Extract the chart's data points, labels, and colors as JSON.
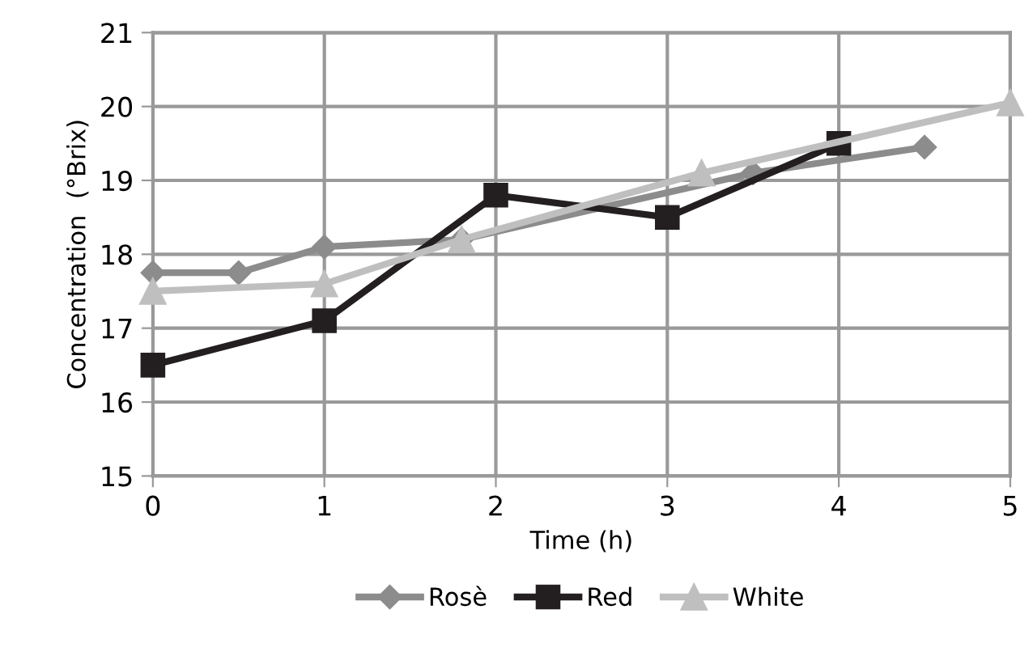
{
  "chart_data": {
    "type": "line",
    "xlabel": "Time (h)",
    "ylabel": "Concentration  (°Brix)",
    "xlim": [
      0,
      5
    ],
    "xticks": [
      0,
      1,
      2,
      3,
      4,
      5
    ],
    "ylim": [
      15,
      21
    ],
    "yticks": [
      15,
      16,
      17,
      18,
      19,
      20,
      21
    ],
    "grid": true,
    "legend": "bottom",
    "line_style": "solid",
    "series": [
      {
        "name": "Rosè",
        "color": "#8c8c8c",
        "marker": "diamond",
        "x": [
          0,
          0.5,
          1,
          1.8,
          3.5,
          4.5
        ],
        "values": [
          17.75,
          17.75,
          18.1,
          18.2,
          19.1,
          19.45
        ]
      },
      {
        "name": "Red",
        "color": "#231f20",
        "marker": "square",
        "x": [
          0,
          1,
          2,
          3,
          4
        ],
        "values": [
          16.5,
          17.1,
          18.8,
          18.5,
          19.5
        ]
      },
      {
        "name": "White",
        "color": "#bfbfbf",
        "marker": "triangle",
        "x": [
          0,
          1,
          1.8,
          3.2,
          5
        ],
        "values": [
          17.5,
          17.6,
          18.2,
          19.1,
          20.05
        ]
      }
    ]
  }
}
